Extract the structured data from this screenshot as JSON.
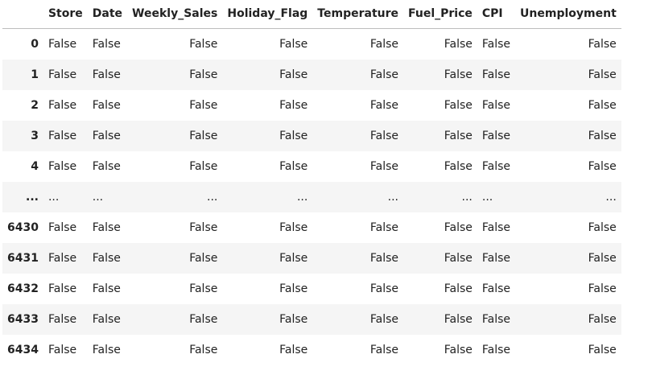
{
  "table": {
    "index_header": "",
    "columns": [
      "Store",
      "Date",
      "Weekly_Sales",
      "Holiday_Flag",
      "Temperature",
      "Fuel_Price",
      "CPI",
      "Unemployment"
    ],
    "rows": [
      {
        "index": "0",
        "cells": [
          "False",
          "False",
          "False",
          "False",
          "False",
          "False",
          "False",
          "False"
        ]
      },
      {
        "index": "1",
        "cells": [
          "False",
          "False",
          "False",
          "False",
          "False",
          "False",
          "False",
          "False"
        ]
      },
      {
        "index": "2",
        "cells": [
          "False",
          "False",
          "False",
          "False",
          "False",
          "False",
          "False",
          "False"
        ]
      },
      {
        "index": "3",
        "cells": [
          "False",
          "False",
          "False",
          "False",
          "False",
          "False",
          "False",
          "False"
        ]
      },
      {
        "index": "4",
        "cells": [
          "False",
          "False",
          "False",
          "False",
          "False",
          "False",
          "False",
          "False"
        ]
      },
      {
        "index": "...",
        "cells": [
          "...",
          "...",
          "...",
          "...",
          "...",
          "...",
          "...",
          "..."
        ]
      },
      {
        "index": "6430",
        "cells": [
          "False",
          "False",
          "False",
          "False",
          "False",
          "False",
          "False",
          "False"
        ]
      },
      {
        "index": "6431",
        "cells": [
          "False",
          "False",
          "False",
          "False",
          "False",
          "False",
          "False",
          "False"
        ]
      },
      {
        "index": "6432",
        "cells": [
          "False",
          "False",
          "False",
          "False",
          "False",
          "False",
          "False",
          "False"
        ]
      },
      {
        "index": "6433",
        "cells": [
          "False",
          "False",
          "False",
          "False",
          "False",
          "False",
          "False",
          "False"
        ]
      },
      {
        "index": "6434",
        "cells": [
          "False",
          "False",
          "False",
          "False",
          "False",
          "False",
          "False",
          "False"
        ]
      }
    ]
  },
  "colors": {
    "header_border": "#bdbdbd",
    "stripe": "#f5f5f5",
    "text": "#222222"
  }
}
